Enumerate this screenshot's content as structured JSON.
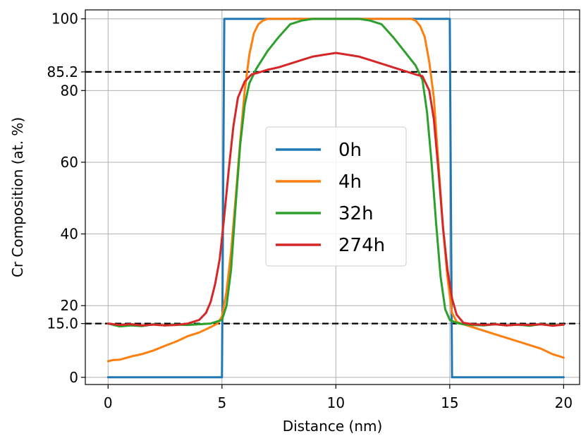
{
  "chart_data": {
    "type": "line",
    "xlabel": "Distance (nm)",
    "ylabel": "Cr Composition (at. %)",
    "xlim": [
      -1,
      20.7
    ],
    "ylim": [
      -2,
      102.5
    ],
    "xticks": [
      0,
      5,
      10,
      15,
      20
    ],
    "xtick_labels": [
      "0",
      "5",
      "10",
      "15",
      "20"
    ],
    "yticks": [
      0,
      15.0,
      20,
      40,
      60,
      80,
      85.2,
      100
    ],
    "ytick_labels": [
      "0",
      "15.0",
      "20",
      "40",
      "60",
      "80",
      "85.2",
      "100"
    ],
    "grid": true,
    "legend_position": "center",
    "reference_lines": [
      {
        "y": 85.2,
        "style": "dashed",
        "color": "#000000"
      },
      {
        "y": 15.0,
        "style": "dashed",
        "color": "#000000"
      }
    ],
    "series": [
      {
        "name": "0h",
        "color": "#1f77b4",
        "x": [
          0,
          5.0,
          5.1,
          15.0,
          15.1,
          20
        ],
        "y": [
          0,
          0,
          100,
          100,
          0,
          0
        ]
      },
      {
        "name": "4h",
        "color": "#ff7f0e",
        "x": [
          0,
          0.2,
          0.5,
          1,
          1.5,
          2,
          2.5,
          3,
          3.5,
          4,
          4.5,
          4.8,
          5.0,
          5.2,
          5.4,
          5.6,
          5.8,
          6.0,
          6.2,
          6.4,
          6.6,
          6.8,
          7.0,
          7.5,
          8,
          9,
          10,
          11,
          12,
          13,
          13.3,
          13.5,
          13.7,
          13.9,
          14.1,
          14.3,
          14.5,
          14.7,
          14.9,
          15.1,
          15.3,
          15.5,
          16,
          16.5,
          17,
          17.5,
          18,
          18.5,
          19,
          19.5,
          20
        ],
        "y": [
          4.5,
          4.8,
          4.9,
          5.8,
          6.5,
          7.5,
          8.8,
          10,
          11.5,
          12.5,
          14,
          15,
          17,
          24,
          35,
          50,
          66,
          80,
          90,
          96,
          98.5,
          99.5,
          100,
          100,
          100,
          100,
          100,
          100,
          100,
          100,
          100,
          99.5,
          98,
          95,
          88,
          78,
          60,
          42,
          28,
          18,
          15.5,
          15,
          14,
          13,
          12,
          11,
          10,
          9,
          8,
          6.5,
          5.5
        ]
      },
      {
        "name": "32h",
        "color": "#2ca02c",
        "x": [
          0,
          0.5,
          1,
          1.5,
          2,
          2.5,
          3,
          3.5,
          4,
          4.5,
          5.0,
          5.2,
          5.4,
          5.6,
          5.8,
          6.0,
          6.2,
          6.5,
          7.0,
          7.5,
          8,
          8.5,
          9,
          10,
          11,
          11.5,
          12,
          12.5,
          13,
          13.5,
          13.8,
          14.0,
          14.2,
          14.4,
          14.6,
          14.8,
          15.0,
          15.3,
          15.6,
          16,
          16.5,
          17,
          17.5,
          18,
          18.5,
          19,
          19.5,
          20
        ],
        "y": [
          15,
          14.2,
          14.5,
          14.3,
          14.8,
          14.5,
          14.7,
          14.6,
          14.8,
          15,
          16,
          20,
          30,
          48,
          65,
          76,
          82,
          86,
          91,
          95,
          98.5,
          99.5,
          100,
          100,
          100,
          99.5,
          98.5,
          95,
          91,
          87,
          83,
          74,
          60,
          43,
          28,
          19,
          16,
          15.2,
          14.8,
          14.6,
          14.5,
          14.8,
          14.5,
          14.7,
          14.4,
          14.8,
          14.5,
          14.7
        ]
      },
      {
        "name": "274h",
        "color": "#d62728",
        "x": [
          0,
          0.5,
          1,
          1.5,
          2,
          2.5,
          3,
          3.5,
          4.0,
          4.3,
          4.5,
          4.7,
          4.9,
          5.1,
          5.3,
          5.5,
          5.7,
          6.0,
          6.3,
          6.6,
          7.0,
          7.5,
          8,
          8.5,
          9,
          9.5,
          10,
          10.5,
          11,
          11.5,
          12,
          12.5,
          13,
          13.5,
          13.8,
          14.1,
          14.3,
          14.5,
          14.7,
          14.9,
          15.1,
          15.3,
          15.6,
          16,
          16.5,
          17,
          17.5,
          18,
          18.5,
          19,
          19.5,
          20
        ],
        "y": [
          15,
          14.6,
          14.8,
          14.5,
          14.7,
          14.5,
          14.6,
          15,
          16,
          18,
          21,
          26,
          33,
          45,
          58,
          70,
          78,
          82.5,
          84.5,
          85,
          85.8,
          86.5,
          87.5,
          88.5,
          89.5,
          90,
          90.5,
          90,
          89.5,
          88.5,
          87.5,
          86.5,
          85.5,
          84.5,
          84,
          80,
          72,
          58,
          42,
          30,
          22,
          17.5,
          15.2,
          14.8,
          14.6,
          14.8,
          14.5,
          14.7,
          14.6,
          14.8,
          14.4,
          14.7
        ]
      }
    ]
  }
}
